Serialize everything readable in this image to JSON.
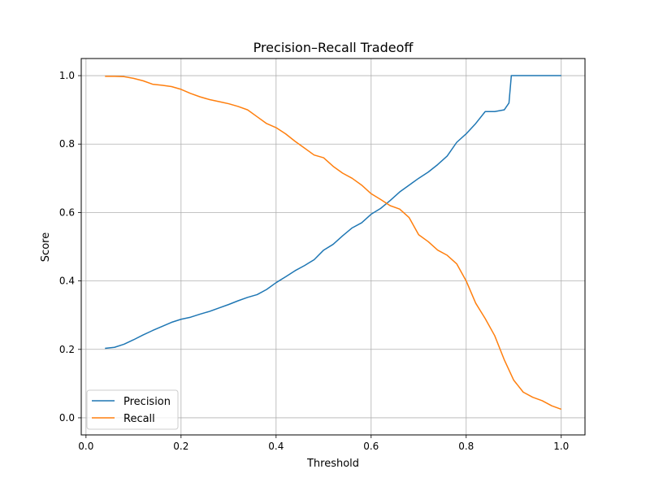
{
  "chart_data": {
    "type": "line",
    "title": "Precision–Recall Tradeoff",
    "xlabel": "Threshold",
    "ylabel": "Score",
    "xlim": [
      -0.01,
      1.05
    ],
    "ylim": [
      -0.05,
      1.05
    ],
    "xticks": [
      0.0,
      0.2,
      0.4,
      0.6,
      0.8,
      1.0
    ],
    "xtick_labels": [
      "0.0",
      "0.2",
      "0.4",
      "0.6",
      "0.8",
      "1.0"
    ],
    "yticks": [
      0.0,
      0.2,
      0.4,
      0.6,
      0.8,
      1.0
    ],
    "ytick_labels": [
      "0.0",
      "0.2",
      "0.4",
      "0.6",
      "0.8",
      "1.0"
    ],
    "grid": true,
    "legend_position": "lower-left",
    "series": [
      {
        "name": "Precision",
        "color": "#1f77b4",
        "x": [
          0.04,
          0.06,
          0.08,
          0.1,
          0.12,
          0.14,
          0.16,
          0.18,
          0.2,
          0.22,
          0.24,
          0.26,
          0.28,
          0.3,
          0.32,
          0.34,
          0.36,
          0.38,
          0.4,
          0.42,
          0.44,
          0.46,
          0.48,
          0.5,
          0.52,
          0.54,
          0.56,
          0.58,
          0.6,
          0.62,
          0.64,
          0.66,
          0.68,
          0.7,
          0.72,
          0.74,
          0.76,
          0.78,
          0.8,
          0.82,
          0.84,
          0.86,
          0.88,
          0.89,
          0.895,
          0.9,
          0.95,
          1.0
        ],
        "values": [
          0.203,
          0.206,
          0.215,
          0.228,
          0.242,
          0.255,
          0.267,
          0.279,
          0.288,
          0.294,
          0.303,
          0.311,
          0.321,
          0.331,
          0.342,
          0.352,
          0.36,
          0.375,
          0.395,
          0.412,
          0.43,
          0.445,
          0.462,
          0.49,
          0.507,
          0.532,
          0.555,
          0.57,
          0.595,
          0.612,
          0.635,
          0.66,
          0.68,
          0.7,
          0.718,
          0.74,
          0.765,
          0.805,
          0.83,
          0.86,
          0.895,
          0.895,
          0.9,
          0.92,
          1.0,
          1.0,
          1.0,
          1.0
        ]
      },
      {
        "name": "Recall",
        "color": "#ff7f0e",
        "x": [
          0.04,
          0.06,
          0.08,
          0.1,
          0.12,
          0.14,
          0.16,
          0.18,
          0.2,
          0.22,
          0.24,
          0.26,
          0.28,
          0.3,
          0.32,
          0.34,
          0.36,
          0.38,
          0.4,
          0.42,
          0.44,
          0.46,
          0.48,
          0.5,
          0.52,
          0.54,
          0.56,
          0.58,
          0.6,
          0.62,
          0.64,
          0.66,
          0.68,
          0.7,
          0.72,
          0.74,
          0.76,
          0.78,
          0.8,
          0.82,
          0.84,
          0.86,
          0.88,
          0.9,
          0.92,
          0.94,
          0.96,
          0.98,
          1.0
        ],
        "values": [
          0.998,
          0.998,
          0.997,
          0.992,
          0.985,
          0.975,
          0.972,
          0.968,
          0.96,
          0.948,
          0.938,
          0.93,
          0.924,
          0.918,
          0.91,
          0.9,
          0.88,
          0.86,
          0.848,
          0.83,
          0.808,
          0.788,
          0.768,
          0.76,
          0.735,
          0.715,
          0.7,
          0.68,
          0.655,
          0.638,
          0.62,
          0.61,
          0.585,
          0.535,
          0.515,
          0.49,
          0.475,
          0.45,
          0.4,
          0.335,
          0.29,
          0.24,
          0.17,
          0.11,
          0.075,
          0.06,
          0.05,
          0.035,
          0.025
        ]
      }
    ]
  }
}
